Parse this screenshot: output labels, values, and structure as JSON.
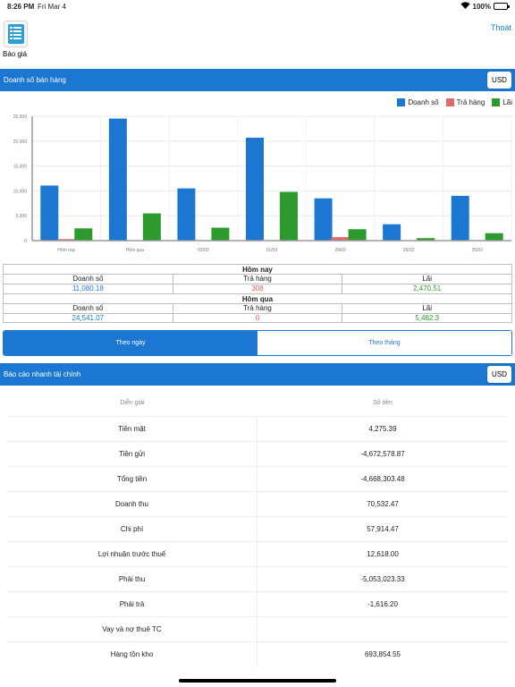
{
  "status": {
    "time": "8:26 PM",
    "date": "Fri Mar 4",
    "battery": "100%"
  },
  "header": {
    "app_label": "Báo giá",
    "logout": "Thoát"
  },
  "sales": {
    "title": "Doanh số bán hàng",
    "currency": "USD",
    "legend": [
      "Doanh số",
      "Trả hàng",
      "Lãi"
    ]
  },
  "colors": {
    "accent": "#1c77d2",
    "doanh_so": "#1c77d2",
    "tra_hang": "#e06a6a",
    "lai": "#2c9a2c"
  },
  "chart_data": {
    "type": "bar",
    "categories": [
      "Hôm nay",
      "Hôm qua",
      "02/03",
      "01/03",
      "28/02",
      "26/02",
      "25/02"
    ],
    "series": [
      {
        "name": "Doanh số",
        "values": [
          11080.18,
          24541.07,
          10500,
          20700,
          8500,
          3300,
          9000
        ]
      },
      {
        "name": "Trả hàng",
        "values": [
          308,
          0,
          0,
          0,
          700,
          0,
          0
        ]
      },
      {
        "name": "Lãi",
        "values": [
          2470.51,
          5482.3,
          2600,
          9800,
          2300,
          500,
          1500
        ]
      }
    ],
    "ylim": [
      0,
      25000
    ],
    "yticks": [
      "0",
      "5,000",
      "10,000",
      "15,000",
      "20,000",
      "25,000"
    ],
    "legend": "top-right",
    "grid": true
  },
  "summary": {
    "today": {
      "title": "Hôm nay",
      "labels": [
        "Doanh số",
        "Trả hàng",
        "Lãi"
      ],
      "values": [
        "11,080.18",
        "308",
        "2,470.51"
      ]
    },
    "yesterday": {
      "title": "Hôm qua",
      "labels": [
        "Doanh số",
        "Trả hàng",
        "Lãi"
      ],
      "values": [
        "24,541.07",
        "0",
        "5,482.3"
      ]
    }
  },
  "tabs": {
    "by_day": "Theo ngày",
    "by_month": "Theo tháng"
  },
  "finance": {
    "title": "Báo cáo nhanh tài chính",
    "currency": "USD",
    "col_desc": "Diễn giải",
    "col_amount": "Số tiền",
    "rows": [
      {
        "label": "Tiền mặt",
        "amount": "4,275.39"
      },
      {
        "label": "Tiền gửi",
        "amount": "-4,672,578.87"
      },
      {
        "label": "Tổng tiền",
        "amount": "-4,668,303.48"
      },
      {
        "label": "Doanh thu",
        "amount": "70,532.47"
      },
      {
        "label": "Chi phí",
        "amount": "57,914.47"
      },
      {
        "label": "Lợi nhuận trước thuế",
        "amount": "12,618.00"
      },
      {
        "label": "Phải thu",
        "amount": "-5,053,023.33"
      },
      {
        "label": "Phải trả",
        "amount": "-1,616.20"
      },
      {
        "label": "Vay và nợ thuê TC",
        "amount": ""
      },
      {
        "label": "Hàng tồn kho",
        "amount": "693,854.55"
      }
    ]
  }
}
